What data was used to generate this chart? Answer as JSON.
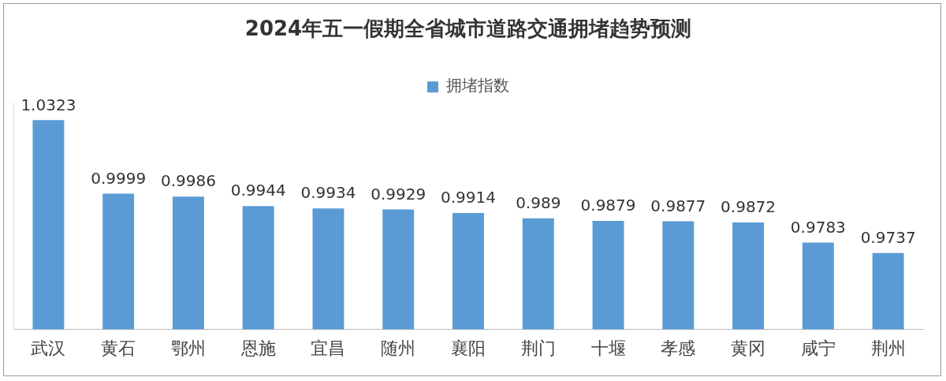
{
  "chart_data": {
    "type": "bar",
    "title": "2024年五一假期全省城市道路交通拥堵趋势预测",
    "categories": [
      "武汉",
      "黄石",
      "鄂州",
      "恩施",
      "宜昌",
      "随州",
      "襄阳",
      "荆门",
      "十堰",
      "孝感",
      "黄冈",
      "咸宁",
      "荆州"
    ],
    "series": [
      {
        "name": "拥堵指数",
        "color": "#5b9bd5",
        "values": [
          1.0323,
          0.9999,
          0.9986,
          0.9944,
          0.9934,
          0.9929,
          0.9914,
          0.989,
          0.9879,
          0.9877,
          0.9872,
          0.9783,
          0.9737
        ]
      }
    ],
    "ylim": [
      0.94,
      1.04
    ],
    "tick_labels": "x",
    "data_labels": true,
    "legend": "top",
    "grid": false
  }
}
